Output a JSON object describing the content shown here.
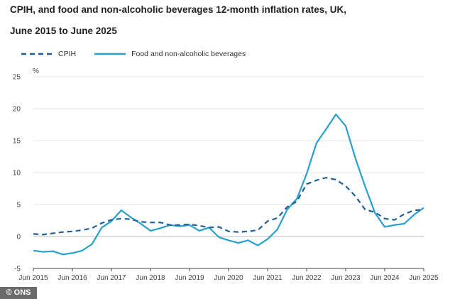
{
  "header": {
    "title_line1": "CPIH, and food and non-alcoholic beverages 12-month inflation rates, UK,",
    "title_line2": "June 2015 to June 2025"
  },
  "credit": "© ONS",
  "chart_data": {
    "type": "line",
    "title": "CPIH, and food and non-alcoholic beverages 12-month inflation rates, UK, June 2015 to June 2025",
    "ylabel": "%",
    "xlabel": "",
    "ylim": [
      -5,
      25
    ],
    "yticks": [
      -5,
      0,
      5,
      10,
      15,
      20,
      25
    ],
    "xticks": [
      "Jun 2015",
      "Jun 2016",
      "Jun 2017",
      "Jun 2018",
      "Jun 2019",
      "Jun 2020",
      "Jun 2021",
      "Jun 2022",
      "Jun 2023",
      "Jun 2024",
      "Jun 2025"
    ],
    "grid": true,
    "legend_position": "top-left",
    "x": [
      "Jun 2015",
      "Sep 2015",
      "Dec 2015",
      "Mar 2016",
      "Jun 2016",
      "Sep 2016",
      "Dec 2016",
      "Mar 2017",
      "Jun 2017",
      "Sep 2017",
      "Dec 2017",
      "Mar 2018",
      "Jun 2018",
      "Sep 2018",
      "Dec 2018",
      "Mar 2019",
      "Jun 2019",
      "Sep 2019",
      "Dec 2019",
      "Mar 2020",
      "Jun 2020",
      "Sep 2020",
      "Dec 2020",
      "Mar 2021",
      "Jun 2021",
      "Sep 2021",
      "Dec 2021",
      "Mar 2022",
      "Jun 2022",
      "Sep 2022",
      "Dec 2022",
      "Mar 2023",
      "Jun 2023",
      "Sep 2023",
      "Dec 2023",
      "Mar 2024",
      "Jun 2024",
      "Sep 2024",
      "Dec 2024",
      "Mar 2025",
      "Jun 2025"
    ],
    "series": [
      {
        "name": "CPIH",
        "color": "#206095",
        "style": "dashed",
        "values": [
          0.4,
          0.3,
          0.5,
          0.7,
          0.8,
          1.0,
          1.3,
          2.1,
          2.6,
          2.8,
          2.7,
          2.3,
          2.2,
          2.2,
          1.8,
          1.8,
          1.9,
          1.7,
          1.4,
          1.5,
          0.8,
          0.7,
          0.8,
          1.0,
          2.4,
          2.9,
          4.6,
          5.5,
          8.2,
          8.8,
          9.2,
          8.9,
          7.9,
          6.3,
          4.2,
          3.8,
          2.8,
          2.6,
          3.5,
          4.1,
          4.2
        ]
      },
      {
        "name": "Food and non-alcoholic beverages",
        "color": "#27a0cc",
        "style": "solid",
        "values": [
          -2.2,
          -2.4,
          -2.3,
          -2.8,
          -2.6,
          -2.2,
          -1.2,
          1.4,
          2.4,
          4.1,
          3.0,
          2.0,
          0.9,
          1.3,
          1.8,
          1.6,
          1.8,
          0.9,
          1.4,
          -0.1,
          -0.6,
          -1.0,
          -0.6,
          -1.4,
          -0.4,
          1.1,
          4.2,
          5.9,
          9.8,
          14.6,
          16.8,
          19.1,
          17.3,
          12.2,
          7.8,
          3.7,
          1.5,
          1.8,
          2.0,
          3.4,
          4.5
        ]
      }
    ]
  }
}
